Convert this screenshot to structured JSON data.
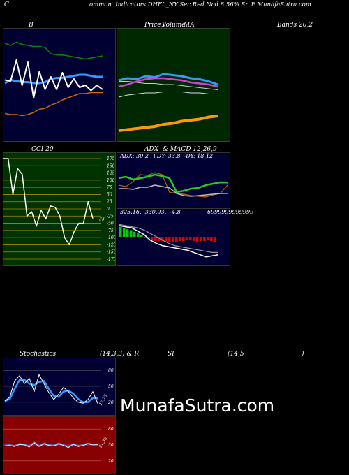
{
  "header": {
    "left": "C",
    "title": "ommon  Indicators DHFL_NY Sec Red Ncd 8.56% Sr. F MunafaSutra.com"
  },
  "labels": {
    "bollinger": "B",
    "price_a": "Price,",
    "price_b": "Volume,",
    "price_c": "MA",
    "bands": "Bands 20,2",
    "cci": "CCI 20",
    "adx_macd": "ADX  & MACD 12,26,9",
    "adx_values": "ADX: 30.2  +DY: 33.8  -DY: 18.12",
    "macd_values": "325.16,  330.03,  -4.8",
    "macd_tail": "6999999999999",
    "stoch": "Stochastics",
    "stoch_params": "(14,3,3) & R",
    "rsi": "SI",
    "rsi_params": "(14,5",
    "rsi_close": ")",
    "stoch_last": "17.75",
    "rsi_last": "51.36",
    "cci_last": "-33"
  },
  "watermark": "MunafaSutra.com",
  "colors": {
    "panel_bg": "#000033",
    "price_bg": "#002800",
    "cci_bg": "#003300",
    "rsi_bg": "#880000",
    "upper_band": "#008800",
    "lower_band": "#cc6600",
    "ma": "#3399ff",
    "price": "#ffffff",
    "volume_ma": "#ff9900",
    "ema": "#cc44cc",
    "adx": "#aa6600",
    "macd_hist_pos": "#00cc00",
    "macd_hist_neg": "#dd0000"
  },
  "chart_data": [
    {
      "type": "line",
      "name": "bollinger",
      "series": [
        {
          "values": [
            90,
            88,
            91,
            89,
            88,
            87,
            87,
            86,
            80,
            79,
            79,
            78,
            77,
            76,
            75,
            76,
            77,
            78
          ]
        },
        {
          "values": [
            52,
            55,
            54,
            53,
            53,
            52,
            52,
            53,
            56,
            57,
            57,
            58,
            59,
            60,
            60,
            59,
            58,
            58
          ]
        },
        {
          "values": [
            23,
            22,
            22,
            21,
            22,
            24,
            27,
            28,
            31,
            33,
            36,
            38,
            40,
            42,
            42,
            43,
            43,
            43
          ]
        },
        {
          "values": [
            55,
            54,
            74,
            50,
            72,
            38,
            63,
            46,
            58,
            46,
            62,
            48,
            56,
            48,
            50,
            45,
            50,
            46
          ]
        }
      ],
      "ylim": [
        0,
        100
      ]
    },
    {
      "type": "line",
      "name": "price_volume_ma",
      "series": [
        {
          "values": [
            56,
            58,
            57,
            60,
            59,
            62,
            61,
            60,
            58,
            57,
            55,
            52
          ]
        },
        {
          "values": [
            55,
            55,
            54,
            53,
            53,
            52,
            52,
            51,
            50,
            49,
            48,
            47
          ]
        },
        {
          "values": [
            40,
            42,
            43,
            44,
            44,
            45,
            45,
            45,
            44,
            44,
            43,
            43
          ]
        },
        {
          "values": [
            50,
            52,
            55,
            57,
            58,
            58,
            57,
            56,
            54,
            53,
            52,
            50
          ]
        },
        {
          "values": [
            8,
            9,
            10,
            11,
            12,
            14,
            15,
            17,
            18,
            19,
            21,
            22
          ]
        }
      ],
      "ylim": [
        0,
        100
      ]
    },
    {
      "type": "line",
      "name": "cci",
      "yticks": [
        "175",
        "150",
        "125",
        "100",
        "75",
        "50",
        "25",
        "0",
        "-25",
        "-50",
        "-75",
        "-100",
        "-125",
        "-150",
        "-175"
      ],
      "values": [
        175,
        175,
        50,
        140,
        120,
        -25,
        -10,
        -60,
        -5,
        -35,
        10,
        5,
        -25,
        -100,
        -125,
        -80,
        -50,
        -50,
        25,
        -33
      ],
      "ylim": [
        -175,
        175
      ]
    },
    {
      "type": "line",
      "name": "adx",
      "series": [
        {
          "values": [
            30,
            28,
            35,
            45,
            44,
            48,
            45,
            20,
            18,
            17,
            15,
            14,
            13,
            16,
            18,
            30
          ]
        },
        {
          "values": [
            40,
            42,
            38,
            40,
            42,
            45,
            43,
            40,
            20,
            22,
            25,
            26,
            30,
            32,
            34,
            33.8
          ]
        },
        {
          "values": [
            25,
            25,
            24,
            27,
            27,
            30,
            28,
            26,
            18,
            15,
            14,
            15,
            16,
            17,
            18,
            18.12
          ]
        }
      ],
      "ylim": [
        0,
        60
      ]
    },
    {
      "type": "bar",
      "name": "macd",
      "values": [
        12,
        10,
        9,
        8,
        6,
        4,
        2,
        0,
        -3,
        -4,
        -5,
        -5,
        -5,
        -6,
        -6,
        -6,
        -6,
        -5,
        -5,
        -4,
        -4,
        -5,
        -6,
        -5,
        -5,
        -4,
        -5,
        -6
      ],
      "series": [
        {
          "values": [
            10,
            9,
            8,
            5,
            2,
            -3,
            -6,
            -8,
            -9,
            -10,
            -11,
            -12,
            -14,
            -16,
            -18,
            -17,
            -16
          ]
        },
        {
          "values": [
            11,
            10,
            9,
            8,
            6,
            3,
            0,
            -3,
            -6,
            -8,
            -9,
            -10,
            -11,
            -12,
            -13,
            -14,
            -14
          ]
        }
      ]
    },
    {
      "type": "line",
      "name": "stochastics",
      "yticks": [
        "80",
        "50",
        "20"
      ],
      "series": [
        {
          "values": [
            22,
            30,
            60,
            70,
            55,
            65,
            40,
            72,
            55,
            38,
            25,
            35,
            48,
            40,
            28,
            20,
            18,
            25,
            40,
            17.75
          ]
        },
        {
          "values": [
            22,
            26,
            45,
            62,
            62,
            55,
            52,
            58,
            60,
            45,
            32,
            30,
            40,
            42,
            36,
            26,
            20,
            20,
            28,
            27
          ]
        }
      ],
      "ylim": [
        0,
        100
      ]
    },
    {
      "type": "line",
      "name": "rsi",
      "yticks": [
        "80",
        "50",
        "20"
      ],
      "values": [
        49,
        50,
        48,
        52,
        51,
        47,
        55,
        48,
        53,
        50,
        49,
        53,
        50,
        46,
        52,
        48,
        50,
        53,
        51,
        51.36
      ],
      "ylim": [
        0,
        100
      ]
    }
  ]
}
